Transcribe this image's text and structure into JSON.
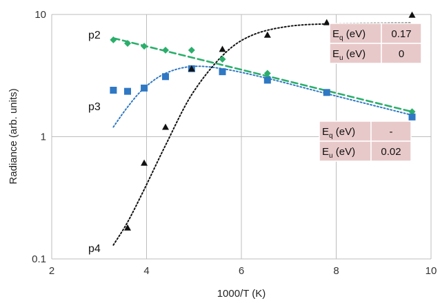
{
  "chart_data": {
    "type": "scatter",
    "xlabel": "1000/T (K)",
    "ylabel": "Radiance (arb. units)",
    "xlim": [
      2,
      10
    ],
    "ylim": [
      0.1,
      10
    ],
    "yscale": "log",
    "grid": true,
    "x_ticks": [
      2,
      4,
      6,
      8,
      10
    ],
    "y_ticks": [
      0.1,
      1,
      10
    ],
    "x_tick_labels": [
      "2",
      "4",
      "6",
      "8",
      "10"
    ],
    "y_tick_labels": [
      "0.1",
      "1",
      "10"
    ],
    "series": [
      {
        "name": "p2",
        "marker": "diamond",
        "color": "#2bae6b",
        "points": [
          [
            3.3,
            6.2
          ],
          [
            3.6,
            5.8
          ],
          [
            3.95,
            5.5
          ],
          [
            4.4,
            5.1
          ],
          [
            4.95,
            5.1
          ],
          [
            5.6,
            4.3
          ],
          [
            6.55,
            3.3
          ],
          [
            7.8,
            2.3
          ],
          [
            9.6,
            1.6
          ]
        ],
        "fit": [
          [
            3.3,
            6.4
          ],
          [
            9.6,
            1.6
          ]
        ],
        "fit_style": "dashed"
      },
      {
        "name": "p3",
        "marker": "square",
        "color": "#2f78c4",
        "points": [
          [
            3.3,
            2.4
          ],
          [
            3.6,
            2.35
          ],
          [
            3.95,
            2.5
          ],
          [
            4.4,
            3.1
          ],
          [
            4.95,
            3.6
          ],
          [
            5.6,
            3.4
          ],
          [
            6.55,
            2.9
          ],
          [
            7.8,
            2.3
          ],
          [
            9.6,
            1.45
          ]
        ],
        "fit": [
          [
            3.3,
            1.2
          ],
          [
            3.6,
            1.75
          ],
          [
            3.95,
            2.5
          ],
          [
            4.4,
            3.3
          ],
          [
            4.95,
            3.75
          ],
          [
            5.6,
            3.6
          ],
          [
            6.55,
            3.0
          ],
          [
            7.8,
            2.25
          ],
          [
            9.6,
            1.5
          ]
        ],
        "fit_style": "dotted"
      },
      {
        "name": "p4",
        "marker": "triangle",
        "color": "#111111",
        "points": [
          [
            3.6,
            0.18
          ],
          [
            3.95,
            0.61
          ],
          [
            4.4,
            1.2
          ],
          [
            4.95,
            3.6
          ],
          [
            5.6,
            5.2
          ],
          [
            6.55,
            6.8
          ],
          [
            7.8,
            8.6
          ],
          [
            9.6,
            9.9
          ]
        ],
        "fit": [
          [
            3.3,
            0.13
          ],
          [
            3.6,
            0.2
          ],
          [
            3.95,
            0.37
          ],
          [
            4.4,
            0.85
          ],
          [
            4.95,
            2.2
          ],
          [
            5.6,
            4.6
          ],
          [
            6.2,
            6.7
          ],
          [
            7.0,
            8.0
          ],
          [
            8.0,
            8.4
          ],
          [
            9.6,
            8.5
          ]
        ],
        "fit_style": "dotted"
      }
    ],
    "tables": [
      {
        "rows": [
          {
            "label": "E",
            "sub": "q",
            "unit": "(eV)",
            "value": "0.17"
          },
          {
            "label": "E",
            "sub": "u",
            "unit": "(eV)",
            "value": "0"
          }
        ]
      },
      {
        "rows": [
          {
            "label": "E",
            "sub": "q",
            "unit": "(eV)",
            "value": "-"
          },
          {
            "label": "E",
            "sub": "u",
            "unit": "(eV)",
            "value": "0.02"
          }
        ]
      }
    ]
  }
}
